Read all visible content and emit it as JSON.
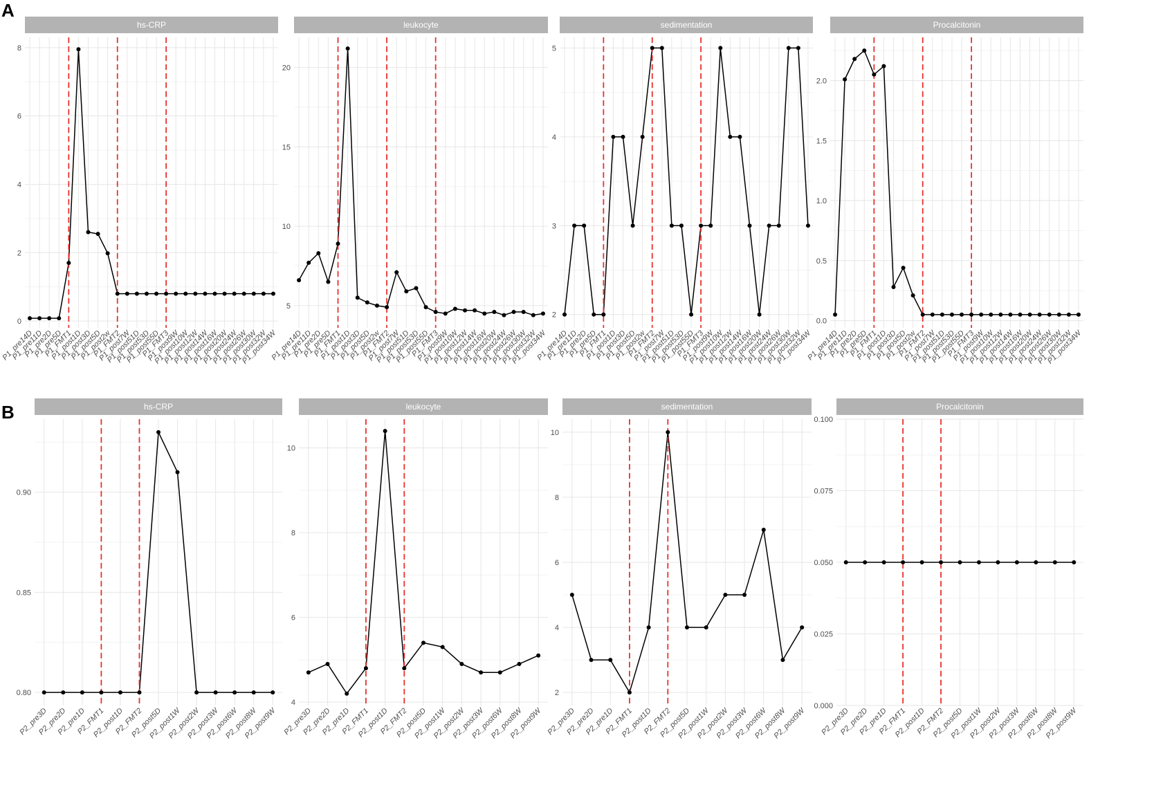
{
  "panel_labels": [
    "A",
    "B"
  ],
  "colors": {
    "strip": "#b3b3b3",
    "strip_text": "#ffffff",
    "line": "#000000",
    "vline": "#e8302b",
    "grid_major": "#e6e6e6",
    "grid_minor": "#f3f3f3"
  },
  "chart_data": [
    {
      "type": "line",
      "panel": "A",
      "title": "hs-CRP",
      "categories": [
        "P1_pre14D",
        "P1_pre11D",
        "P1_pre2D",
        "P1_pre5D",
        "P1_FMT1",
        "P1_post1D",
        "P1_post3D",
        "P1_post5D",
        "P1_post2w",
        "P1_FMT2",
        "P1_post7W",
        "P1_post51D",
        "P1_post53D",
        "P1_post55D",
        "P1_FMT3",
        "P1_post9W",
        "P1_post10W",
        "P1_post12W",
        "P1_post14W",
        "P1_post16W",
        "P1_post20W",
        "P1_post24W",
        "P1_post26W",
        "P1_post30W",
        "P1_post32W",
        "P1_post34W"
      ],
      "values": [
        0.08,
        0.08,
        0.08,
        0.08,
        1.7,
        7.95,
        2.6,
        2.55,
        1.98,
        0.8,
        0.8,
        0.8,
        0.8,
        0.8,
        0.8,
        0.8,
        0.8,
        0.8,
        0.8,
        0.8,
        0.8,
        0.8,
        0.8,
        0.8,
        0.8,
        0.8
      ],
      "vlines": [
        "P1_FMT1",
        "P1_FMT2",
        "P1_FMT3"
      ],
      "ylim": [
        -0.2,
        8.3
      ],
      "yticks": [
        0,
        2,
        4,
        6,
        8
      ],
      "yticklabels": [
        "0",
        "2",
        "4",
        "6",
        "8"
      ]
    },
    {
      "type": "line",
      "panel": "A",
      "title": "leukocyte",
      "categories": [
        "P1_pre14D",
        "P1_pre11D",
        "P1_pre2D",
        "P1_pre5D",
        "P1_FMT1",
        "P1_post1D",
        "P1_post3D",
        "P1_post5D",
        "P1_post2w",
        "P1_FMT2",
        "P1_post7W",
        "P1_post51D",
        "P1_post53D",
        "P1_post55D",
        "P1_FMT3",
        "P1_post9W",
        "P1_post10W",
        "P1_post12W",
        "P1_post14W",
        "P1_post16W",
        "P1_post20W",
        "P1_post24W",
        "P1_post26W",
        "P1_post30W",
        "P1_post32W",
        "P1_post34W"
      ],
      "values": [
        6.6,
        7.7,
        8.3,
        6.5,
        8.9,
        21.2,
        5.5,
        5.2,
        5.0,
        4.9,
        7.1,
        5.9,
        6.1,
        4.9,
        4.6,
        4.5,
        4.8,
        4.7,
        4.7,
        4.5,
        4.6,
        4.4,
        4.6,
        4.6,
        4.4,
        4.5
      ],
      "vlines": [
        "P1_FMT1",
        "P1_FMT2",
        "P1_FMT3"
      ],
      "ylim": [
        3.6,
        21.9
      ],
      "yticks": [
        5,
        10,
        15,
        20
      ],
      "yticklabels": [
        "5",
        "10",
        "15",
        "20"
      ]
    },
    {
      "type": "line",
      "panel": "A",
      "title": "sedimentation",
      "categories": [
        "P1_pre14D",
        "P1_pre11D",
        "P1_pre2D",
        "P1_pre5D",
        "P1_FMT1",
        "P1_post1D",
        "P1_post3D",
        "P1_post5D",
        "P1_post2w",
        "P1_FMT2",
        "P1_post7W",
        "P1_post51D",
        "P1_post53D",
        "P1_post55D",
        "P1_FMT3",
        "P1_post9W",
        "P1_post10W",
        "P1_post12W",
        "P1_post14W",
        "P1_post16W",
        "P1_post20W",
        "P1_post24W",
        "P1_post26W",
        "P1_post30W",
        "P1_post32W",
        "P1_post34W"
      ],
      "values": [
        2,
        3,
        3,
        2,
        2,
        4,
        4,
        3,
        4,
        5,
        5,
        3,
        3,
        2,
        3,
        3,
        5,
        4,
        4,
        3,
        2,
        3,
        3,
        5,
        5,
        3
      ],
      "vlines": [
        "P1_FMT1",
        "P1_FMT2",
        "P1_FMT3"
      ],
      "ylim": [
        1.85,
        5.12
      ],
      "yticks": [
        2,
        3,
        4,
        5
      ],
      "yticklabels": [
        "2",
        "3",
        "4",
        "5"
      ]
    },
    {
      "type": "line",
      "panel": "A",
      "title": "Procalcitonin",
      "categories": [
        "P1_pre14D",
        "P1_pre11D",
        "P1_pre2D",
        "P1_pre5D",
        "P1_FMT1",
        "P1_post1D",
        "P1_post3D",
        "P1_post5D",
        "P1_post2w",
        "P1_FMT2",
        "P1_post7W",
        "P1_post51D",
        "P1_post53D",
        "P1_post55D",
        "P1_FMT3",
        "P1_post9W",
        "P1_post10W",
        "P1_post12W",
        "P1_post14W",
        "P1_post16W",
        "P1_post20W",
        "P1_post24W",
        "P1_post26W",
        "P1_post30W",
        "P1_post32W",
        "P1_post34W"
      ],
      "values": [
        0.05,
        2.01,
        2.18,
        2.25,
        2.05,
        2.12,
        0.28,
        0.44,
        0.21,
        0.05,
        0.05,
        0.05,
        0.05,
        0.05,
        0.05,
        0.05,
        0.05,
        0.05,
        0.05,
        0.05,
        0.05,
        0.05,
        0.05,
        0.05,
        0.05,
        0.05
      ],
      "vlines": [
        "P1_FMT1",
        "P1_FMT2",
        "P1_FMT3"
      ],
      "ylim": [
        -0.06,
        2.36
      ],
      "yticks": [
        0.0,
        0.5,
        1.0,
        1.5,
        2.0
      ],
      "yticklabels": [
        "0.0",
        "0.5",
        "1.0",
        "1.5",
        "2.0"
      ]
    },
    {
      "type": "line",
      "panel": "B",
      "title": "hs-CRP",
      "categories": [
        "P2_pre3D",
        "P2_pre2D",
        "P2_pre1D",
        "P2_FMT1",
        "P2_post1D",
        "P2_FMT2",
        "P2_post5D",
        "P2_post1W",
        "P2_post2W",
        "P2_post3W",
        "P2_post6W",
        "P2_post8W",
        "P2_post9W"
      ],
      "values": [
        0.8,
        0.8,
        0.8,
        0.8,
        0.8,
        0.8,
        0.93,
        0.91,
        0.8,
        0.8,
        0.8,
        0.8,
        0.8
      ],
      "vlines": [
        "P2_FMT1",
        "P2_FMT2"
      ],
      "ylim": [
        0.7935,
        0.9365
      ],
      "yticks": [
        0.8,
        0.85,
        0.9
      ],
      "yticklabels": [
        "0.80",
        "0.85",
        "0.90"
      ]
    },
    {
      "type": "line",
      "panel": "B",
      "title": "leukocyte",
      "categories": [
        "P2_pre3D",
        "P2_pre2D",
        "P2_pre1D",
        "P2_FMT1",
        "P2_post1D",
        "P2_FMT2",
        "P2_post5D",
        "P2_post1W",
        "P2_post2W",
        "P2_post3W",
        "P2_post6W",
        "P2_post8W",
        "P2_post9W"
      ],
      "values": [
        4.7,
        4.9,
        4.2,
        4.8,
        10.4,
        4.8,
        5.4,
        5.3,
        4.9,
        4.7,
        4.7,
        4.9,
        5.1
      ],
      "vlines": [
        "P2_FMT1",
        "P2_FMT2"
      ],
      "ylim": [
        3.92,
        10.68
      ],
      "yticks": [
        4,
        6,
        8,
        10
      ],
      "yticklabels": [
        "4",
        "6",
        "8",
        "10"
      ]
    },
    {
      "type": "line",
      "panel": "B",
      "title": "sedimentation",
      "categories": [
        "P2_pre3D",
        "P2_pre2D",
        "P2_pre1D",
        "P2_FMT1",
        "P2_post1D",
        "P2_FMT2",
        "P2_post5D",
        "P2_post1W",
        "P2_post2W",
        "P2_post3W",
        "P2_post6W",
        "P2_post8W",
        "P2_post9W"
      ],
      "values": [
        5,
        3,
        3,
        2,
        4,
        10,
        4,
        4,
        5,
        5,
        7,
        3,
        4
      ],
      "vlines": [
        "P2_FMT1",
        "P2_FMT2"
      ],
      "ylim": [
        1.6,
        10.4
      ],
      "yticks": [
        2,
        4,
        6,
        8,
        10
      ],
      "yticklabels": [
        "2",
        "4",
        "6",
        "8",
        "10"
      ]
    },
    {
      "type": "line",
      "panel": "B",
      "title": "Procalcitonin",
      "categories": [
        "P2_pre3D",
        "P2_pre2D",
        "P2_pre1D",
        "P2_FMT1",
        "P2_post1D",
        "P2_FMT2",
        "P2_post5D",
        "P2_post1W",
        "P2_post2W",
        "P2_post3W",
        "P2_post6W",
        "P2_post8W",
        "P2_post9W"
      ],
      "values": [
        0.05,
        0.05,
        0.05,
        0.05,
        0.05,
        0.05,
        0.05,
        0.05,
        0.05,
        0.05,
        0.05,
        0.05,
        0.05
      ],
      "vlines": [
        "P2_FMT1",
        "P2_FMT2"
      ],
      "ylim": [
        0.0,
        0.1
      ],
      "yticks": [
        0.0,
        0.025,
        0.05,
        0.075,
        0.1
      ],
      "yticklabels": [
        "0.000",
        "0.025",
        "0.050",
        "0.075",
        "0.100"
      ]
    }
  ]
}
